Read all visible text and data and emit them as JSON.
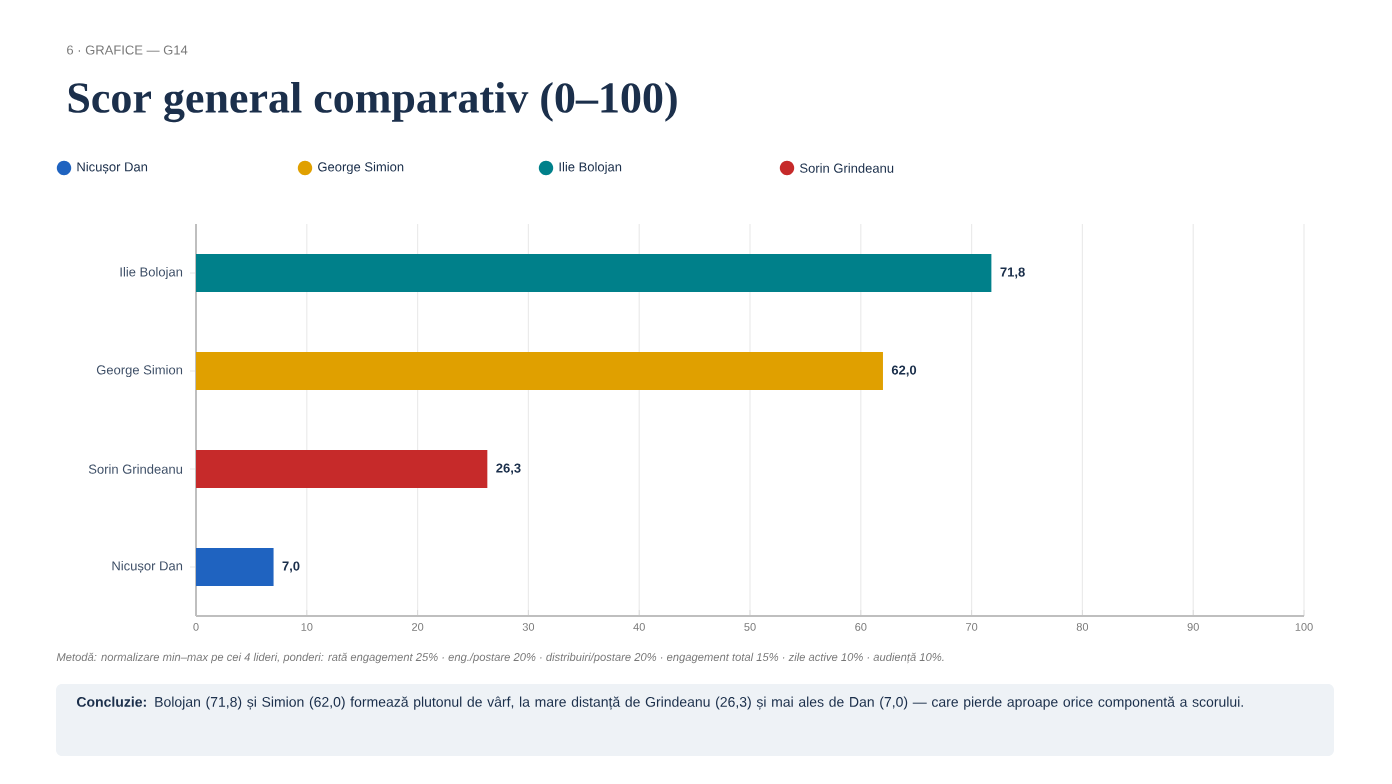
{
  "chart_data": {
    "type": "bar",
    "orientation": "horizontal",
    "subtitle": "6 · GRAFICE — G14",
    "title": "Scor general comparativ (0–100)",
    "categories": [
      "Ilie Bolojan",
      "George Simion",
      "Sorin Grindeanu",
      "Nicușor Dan"
    ],
    "series": [
      {
        "name": "Nicușor Dan",
        "color": "#1f63c0",
        "values": [
          null,
          null,
          null,
          7.0
        ],
        "value_labels": [
          null,
          null,
          null,
          "7,0"
        ]
      },
      {
        "name": "George Simion",
        "color": "#e0a000",
        "values": [
          null,
          62.0,
          null,
          null
        ],
        "value_labels": [
          null,
          "62,0",
          null,
          null
        ]
      },
      {
        "name": "Ilie Bolojan",
        "color": "#00808a",
        "values": [
          71.8,
          null,
          null,
          null
        ],
        "value_labels": [
          "71,8",
          null,
          null,
          null
        ]
      },
      {
        "name": "Sorin Grindeanu",
        "color": "#c62a2a",
        "values": [
          null,
          null,
          26.3,
          null
        ],
        "value_labels": [
          null,
          null,
          "26,3",
          null
        ]
      }
    ],
    "xlim": [
      0,
      100
    ],
    "xticks": [
      0,
      10,
      20,
      30,
      40,
      50,
      60,
      70,
      80,
      90,
      100
    ],
    "grid": "x",
    "legend": "top left",
    "annotations": [
      "Metodă: normalizare min–max pe cei 4 lideri, ponderi: rată engagement 25% · eng./postare 20% · distribuiri/postare 20% · engagement total 15% · zile active 10% · audiență 10%.",
      "**Concluzie:**  Bolojan (71,8) și Simion (62,0) formează plutonul de vârf, la mare distanță de Grindeanu (26,3) și mai ales de Dan (7,0) — care pierde aproape orice componentă a scorului."
    ]
  }
}
